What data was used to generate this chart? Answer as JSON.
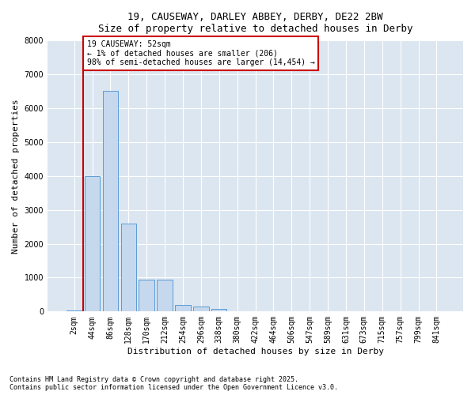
{
  "title_line1": "19, CAUSEWAY, DARLEY ABBEY, DERBY, DE22 2BW",
  "title_line2": "Size of property relative to detached houses in Derby",
  "xlabel": "Distribution of detached houses by size in Derby",
  "ylabel": "Number of detached properties",
  "annotation_text": "19 CAUSEWAY: 52sqm\n← 1% of detached houses are smaller (206)\n98% of semi-detached houses are larger (14,454) →",
  "footer_line1": "Contains HM Land Registry data © Crown copyright and database right 2025.",
  "footer_line2": "Contains public sector information licensed under the Open Government Licence v3.0.",
  "categories": [
    "2sqm",
    "44sqm",
    "86sqm",
    "128sqm",
    "170sqm",
    "212sqm",
    "254sqm",
    "296sqm",
    "338sqm",
    "380sqm",
    "422sqm",
    "464sqm",
    "506sqm",
    "547sqm",
    "589sqm",
    "631sqm",
    "673sqm",
    "715sqm",
    "757sqm",
    "799sqm",
    "841sqm"
  ],
  "bar_values": [
    30,
    4000,
    6500,
    2600,
    950,
    950,
    200,
    150,
    80,
    0,
    0,
    0,
    0,
    0,
    0,
    0,
    0,
    0,
    0,
    0,
    0
  ],
  "bar_color": "#c5d8ee",
  "bar_edge_color": "#5b9bd5",
  "vline_x": 0.5,
  "vline_color": "#cc0000",
  "annotation_box_color": "#cc0000",
  "background_color": "#dce6f1",
  "ylim": [
    0,
    8000
  ],
  "yticks": [
    0,
    1000,
    2000,
    3000,
    4000,
    5000,
    6000,
    7000,
    8000
  ],
  "title_fontsize": 9,
  "axis_label_fontsize": 8,
  "tick_fontsize": 7,
  "footer_fontsize": 6
}
